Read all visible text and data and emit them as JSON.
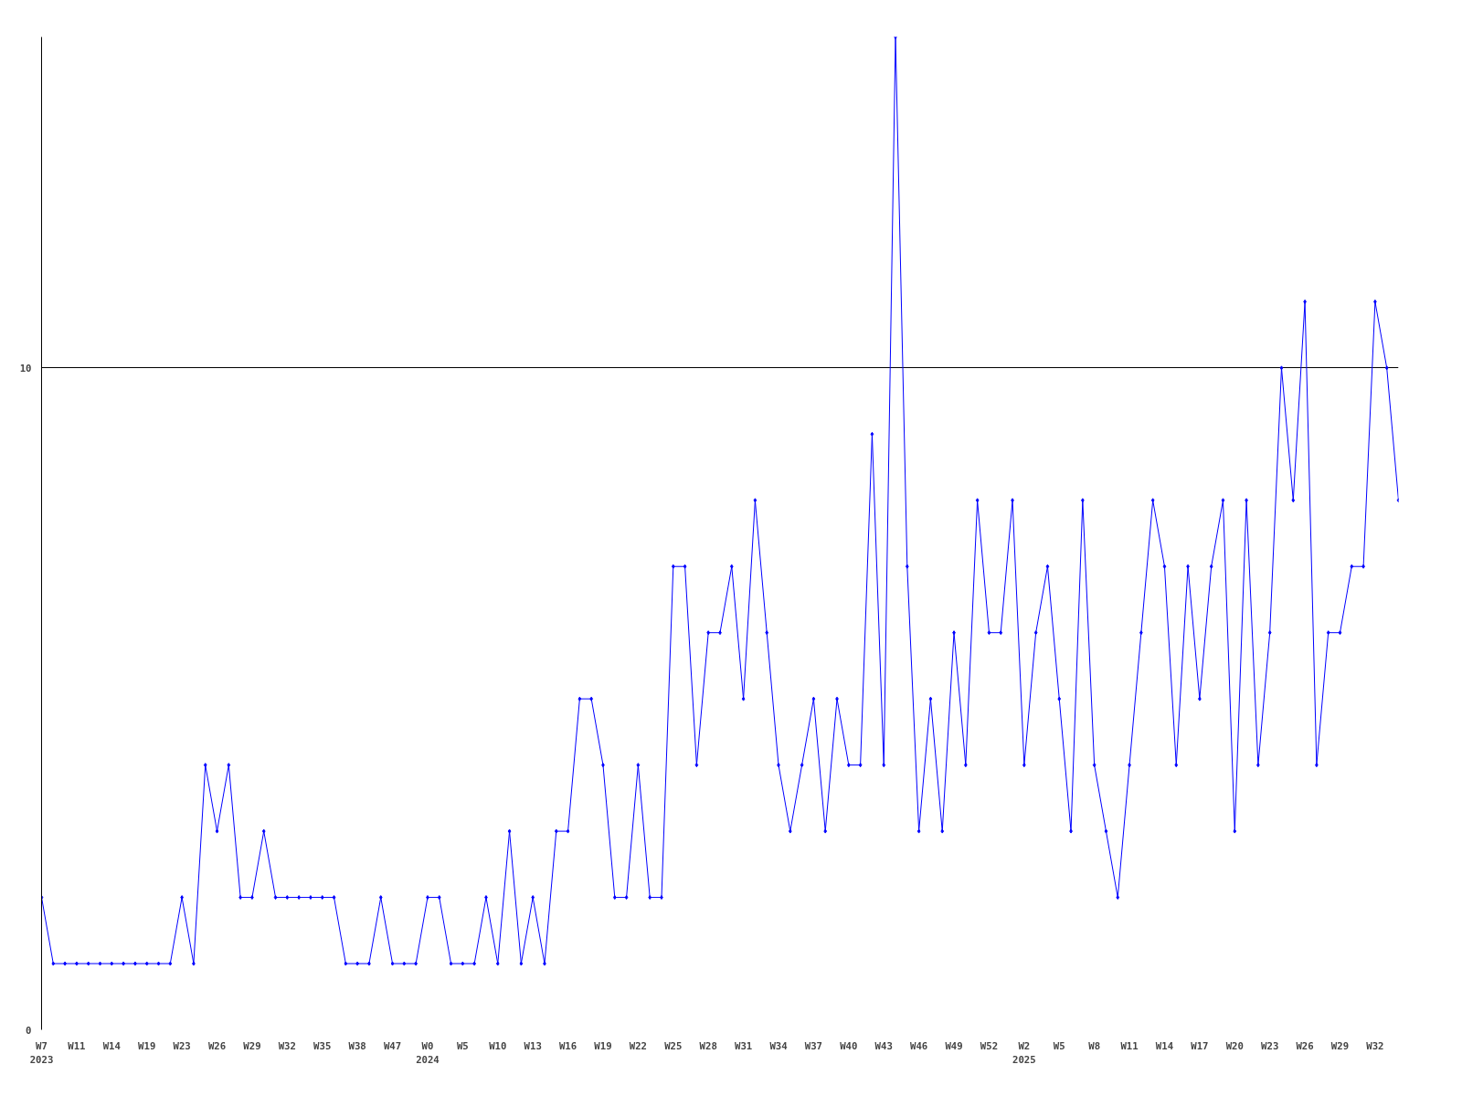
{
  "chart_data": {
    "type": "line",
    "categories": [
      "W7\n2023",
      null,
      null,
      "W11",
      null,
      null,
      "W14",
      null,
      null,
      "W19",
      null,
      null,
      "W23",
      null,
      null,
      "W26",
      null,
      null,
      "W29",
      null,
      null,
      "W32",
      null,
      null,
      "W35",
      null,
      null,
      "W38",
      null,
      null,
      "W47",
      null,
      null,
      "W0\n2024",
      null,
      null,
      "W5",
      null,
      null,
      "W10",
      null,
      null,
      "W13",
      null,
      null,
      "W16",
      null,
      null,
      "W19",
      null,
      null,
      "W22",
      null,
      null,
      "W25",
      null,
      null,
      "W28",
      null,
      null,
      "W31",
      null,
      null,
      "W34",
      null,
      null,
      "W37",
      null,
      null,
      "W40",
      null,
      null,
      "W43",
      null,
      null,
      "W46",
      null,
      null,
      "W49",
      null,
      null,
      "W52",
      null,
      null,
      "W2\n2025",
      null,
      null,
      "W5",
      null,
      null,
      "W8",
      null,
      null,
      "W11",
      null,
      null,
      "W14",
      null,
      null,
      "W17",
      null,
      null,
      "W20",
      null,
      null,
      "W23",
      null,
      null,
      "W26",
      null,
      null,
      "W29",
      null,
      null,
      "W32",
      null,
      null
    ],
    "series": [
      {
        "color": "#0000ff",
        "values": [
          2,
          1,
          1,
          1,
          1,
          1,
          1,
          1,
          1,
          1,
          1,
          1,
          2,
          1,
          4,
          3,
          4,
          2,
          2,
          3,
          2,
          2,
          2,
          2,
          2,
          2,
          1,
          1,
          1,
          2,
          1,
          1,
          1,
          2,
          2,
          1,
          1,
          1,
          2,
          1,
          3,
          1,
          2,
          1,
          3,
          3,
          5,
          5,
          4,
          2,
          2,
          4,
          2,
          2,
          7,
          7,
          4,
          6,
          6,
          7,
          5,
          8,
          6,
          4,
          3,
          4,
          5,
          3,
          5,
          4,
          4,
          9,
          4,
          15,
          7,
          3,
          5,
          3,
          6,
          4,
          8,
          6,
          6,
          8,
          4,
          6,
          7,
          5,
          3,
          8,
          4,
          3,
          2,
          4,
          6,
          8,
          7,
          4,
          7,
          5,
          7,
          8,
          3,
          8,
          4,
          6,
          10,
          8,
          11,
          4,
          6,
          6,
          7,
          7,
          11,
          10,
          8
        ]
      }
    ],
    "ylim": [
      0,
      15
    ],
    "yticks": [
      0,
      10
    ],
    "grid": "y",
    "marker": "diamond",
    "line_style": "solid"
  }
}
